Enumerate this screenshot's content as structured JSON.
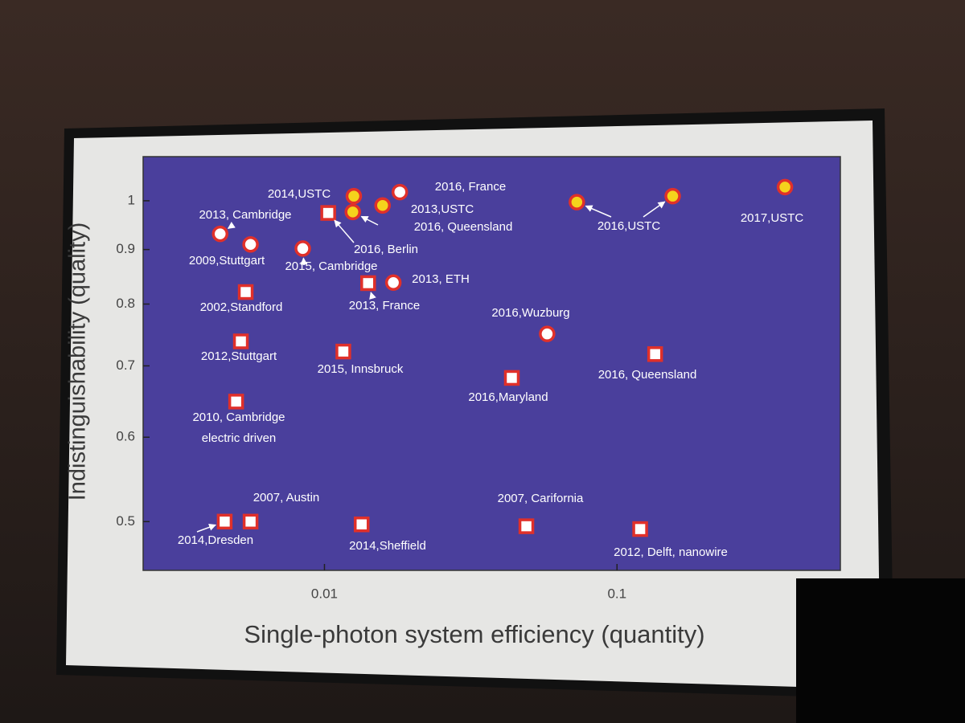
{
  "chart_data": {
    "type": "scatter",
    "xlabel": "Single-photon system efficiency (quantity)",
    "ylabel": "Indistinguishability (quality)",
    "xscale": "log",
    "yscale": "log",
    "xlim": [
      0.0024,
      0.58
    ],
    "ylim": [
      0.45,
      1.1
    ],
    "xticks": [
      0.01,
      0.1
    ],
    "yticks": [
      0.5,
      0.6,
      0.7,
      0.8,
      0.9,
      1
    ],
    "series": [
      {
        "marker": "square",
        "color": "#ffffff",
        "edgecolor": "#e0302a",
        "x": [
          0.00538,
          0.00518,
          0.00499,
          0.00456,
          0.00559,
          0.0134,
          0.0116,
          0.0103,
          0.0141,
          0.0437,
          0.135,
          0.049,
          0.12
        ],
        "values": [
          0.821,
          0.738,
          0.648,
          0.5,
          0.5,
          0.497,
          0.722,
          0.974,
          0.837,
          0.682,
          0.718,
          0.495,
          0.492
        ],
        "labels": [
          [
            "2002,Standford"
          ],
          [
            "2012,Stuttgart"
          ],
          [
            "2010, Cambridge",
            "electric driven"
          ],
          [
            "2014,Dresden"
          ],
          [
            "2007, Austin"
          ],
          [
            "2014,Sheffield"
          ],
          [
            "2015, Innsbruck"
          ],
          [
            "2016, Berlin"
          ],
          [
            "2013, France"
          ],
          [
            "2016,Maryland"
          ],
          [
            "2016, Queensland"
          ],
          [
            "2007, Carifornia"
          ],
          [
            "2012, Delft, nanowire"
          ]
        ]
      },
      {
        "marker": "circle",
        "color": "#ffffff",
        "edgecolor": "#e0302a",
        "x": [
          0.0044,
          0.00559,
          0.00843,
          0.0181,
          0.0172,
          0.0577
        ],
        "values": [
          0.931,
          0.91,
          0.902,
          1.019,
          0.838,
          0.75
        ],
        "labels": [
          [
            "2013, Cambridge"
          ],
          [
            "2009,Stuttgart"
          ],
          [
            "2015, Cambridge"
          ],
          [
            "2016, France"
          ],
          [
            "2013, ETH"
          ],
          [
            "2016,Wuzburg"
          ]
        ]
      },
      {
        "marker": "circle",
        "color": "#f5d31c",
        "edgecolor": "#e0302a",
        "x": [
          0.0126,
          0.0158,
          0.0125,
          0.0729,
          0.155,
          0.375
        ],
        "values": [
          1.01,
          0.99,
          0.976,
          0.997,
          1.01,
          1.03
        ],
        "labels": [
          [
            "2014,USTC"
          ],
          [
            "2013,USTC"
          ],
          [
            "2016, Queensland"
          ],
          [
            "2016,USTC"
          ],
          null,
          [
            "2017,USTC"
          ]
        ],
        "label_colors": [
          "#ffffff",
          "#ffffff",
          "#ffffff",
          "#ffffff",
          "#ffffff",
          "#f5e12a"
        ]
      }
    ]
  }
}
